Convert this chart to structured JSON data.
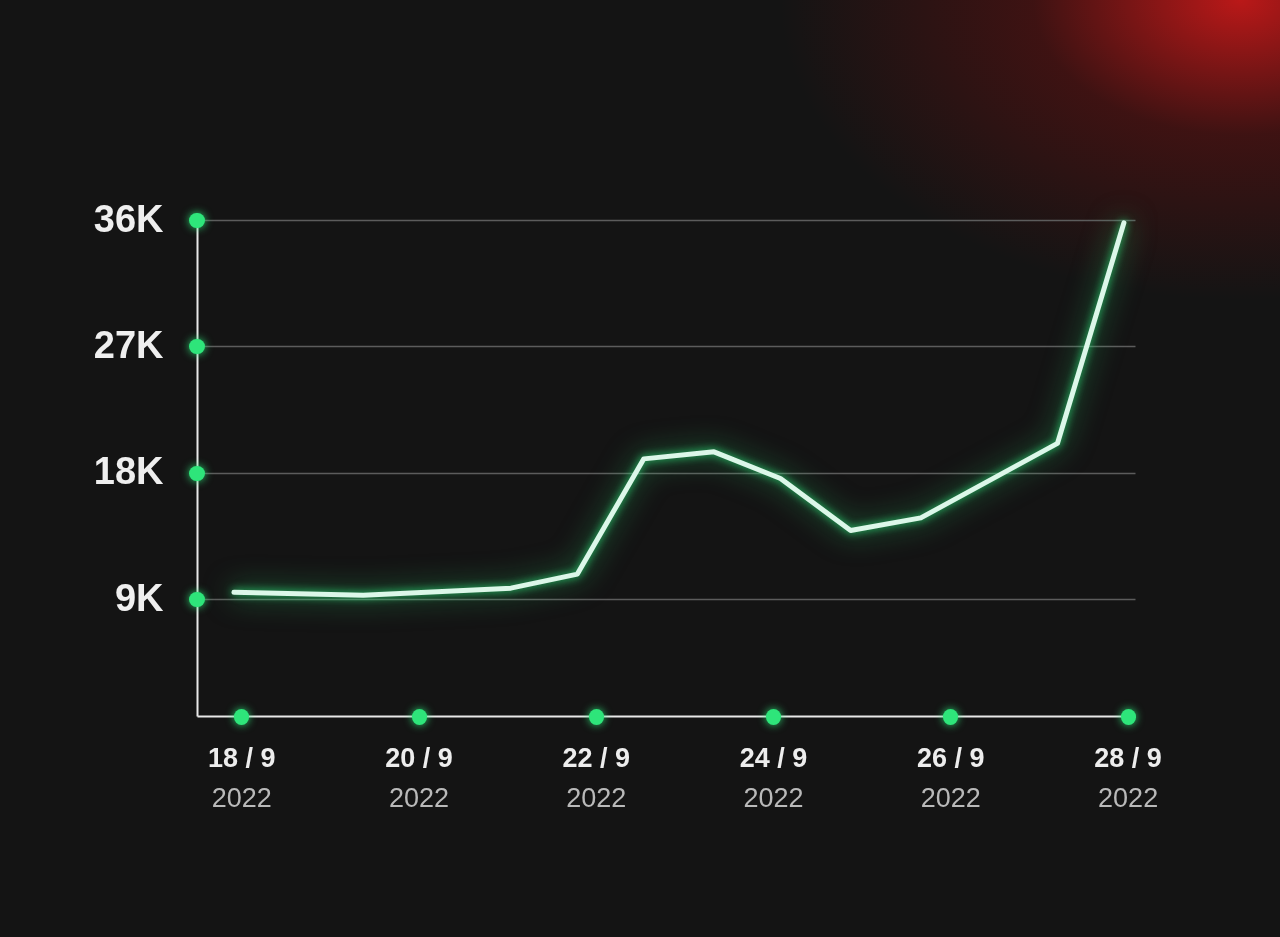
{
  "chart_data": {
    "type": "line",
    "x": [
      "2022-09-17T22:00",
      "2022-09-19T09:00",
      "2022-09-21T01:00",
      "2022-09-21T19:00",
      "2022-09-22T13:00",
      "2022-09-23T08:00",
      "2022-09-24T02:00",
      "2022-09-24T21:00",
      "2022-09-25T16:00",
      "2022-09-27T05:00",
      "2022-09-27T23:00"
    ],
    "series": [
      {
        "color": "#dcf7e9",
        "values": [
          9500,
          9300,
          9800,
          10800,
          19000,
          19500,
          17600,
          13900,
          14800,
          20100,
          35800
        ]
      }
    ],
    "xlim": [
      "2022-09-17T12:00",
      "2022-09-28T02:00"
    ],
    "xticks": [
      {
        "value": "2022-09-18",
        "label": "18 / 9\n2022"
      },
      {
        "value": "2022-09-20",
        "label": "20 / 9\n2022"
      },
      {
        "value": "2022-09-22",
        "label": "22 / 9\n2022"
      },
      {
        "value": "2022-09-24",
        "label": "24 / 9\n2022"
      },
      {
        "value": "2022-09-26",
        "label": "26 / 9\n2022"
      },
      {
        "value": "2022-09-28",
        "label": "28 / 9\n2022"
      }
    ],
    "ylim": [
      700,
      36000
    ],
    "yticks": [
      {
        "value": 9000,
        "label": "9K"
      },
      {
        "value": 18000,
        "label": "18K"
      },
      {
        "value": 27000,
        "label": "27K"
      },
      {
        "value": 36000,
        "label": "36K"
      }
    ],
    "grid": "y",
    "line_style": "solid"
  }
}
